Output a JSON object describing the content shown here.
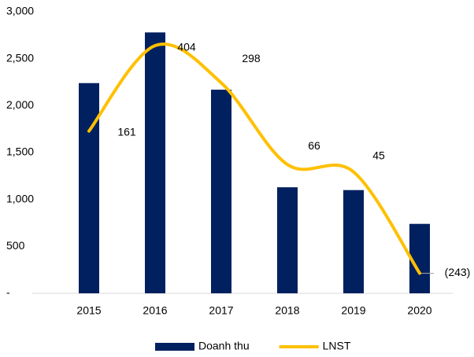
{
  "chart_data": {
    "type": "bar",
    "categories": [
      "2015",
      "2016",
      "2017",
      "2018",
      "2019",
      "2020"
    ],
    "series": [
      {
        "name": "Doanh thu",
        "type": "bar",
        "color": "#002060",
        "values": [
          2240,
          2780,
          2170,
          1130,
          1100,
          740
        ]
      },
      {
        "name": "LNST",
        "type": "line",
        "axis": "y2",
        "color": "#FFC000",
        "values": [
          161,
          404,
          298,
          66,
          45,
          -243
        ],
        "value_labels": [
          "161",
          "404",
          "298",
          "66",
          "45",
          "(243)"
        ]
      }
    ],
    "ylim": [
      0,
      3000
    ],
    "yticks": [
      {
        "value": 0,
        "label": "-"
      },
      500,
      {
        "value": 1000,
        "label": "1,000"
      },
      {
        "value": 1500,
        "label": "1,500"
      },
      {
        "value": 2000,
        "label": "2,000"
      },
      {
        "value": 2500,
        "label": "2,500"
      },
      {
        "value": 3000,
        "label": "3,000"
      }
    ],
    "y2lim": [
      -300,
      500
    ],
    "legend": "bottom"
  }
}
